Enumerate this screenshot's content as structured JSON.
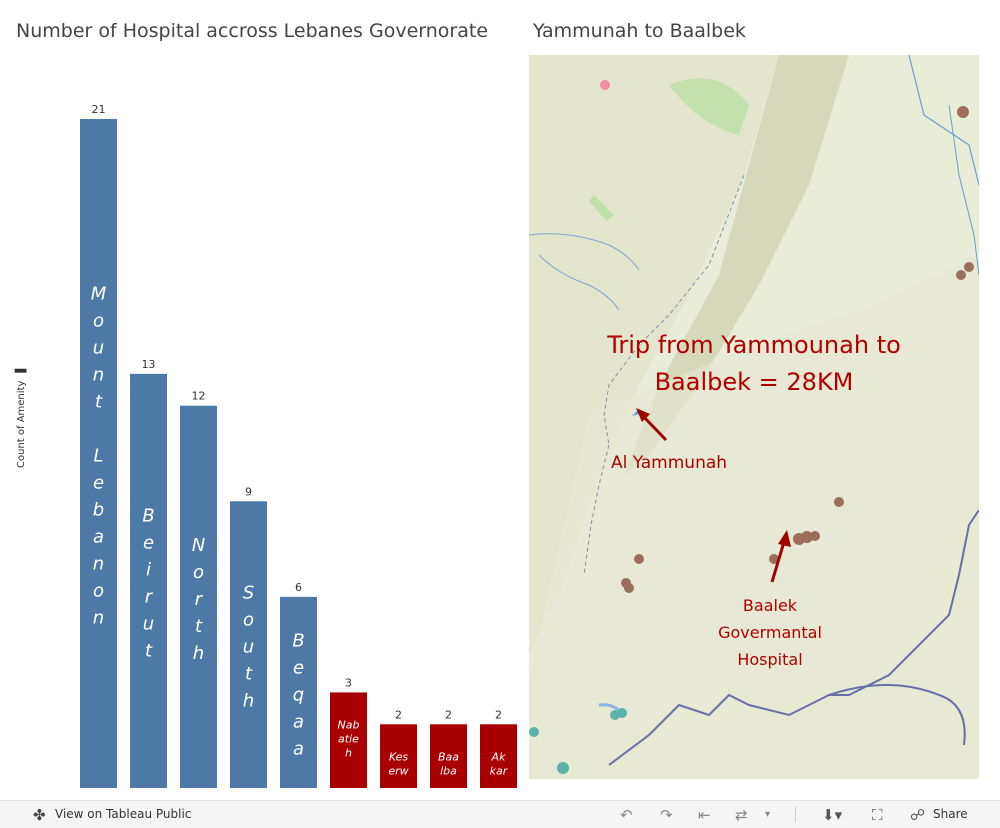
{
  "chart_title": "Number of Hospital accross Lebanes Governorate",
  "map_title": "Yammunah to Baalbek",
  "chart_data": {
    "type": "bar",
    "title": "Number of Hospital accross Lebanes Governorate",
    "ylabel": "Count of Amenity",
    "xlabel": "",
    "categories": [
      "Mount Lebanon",
      "Beirut",
      "North",
      "South",
      "Beqaa",
      "Nabatieh",
      "Keserwan-Jbeil",
      "Baalbek-Hermel",
      "Akkar"
    ],
    "bar_text": [
      "Mount Lebanon",
      "Beirut",
      "North",
      "South",
      "Beqaa",
      "Nab atie h",
      "Kes erw an - Jbei",
      "Baa lba k - Her",
      "Ak kar"
    ],
    "values": [
      21,
      13,
      12,
      9,
      6,
      3,
      2,
      2,
      2
    ],
    "colors": [
      "#4e79a7",
      "#4e79a7",
      "#4e79a7",
      "#4e79a7",
      "#4e79a7",
      "#a80000",
      "#a80000",
      "#a80000",
      "#a80000"
    ],
    "ylim": [
      0,
      21
    ],
    "grid": false,
    "legend": "none"
  },
  "map": {
    "annotation_title": "Trip from Yammounah to Baalbek = 28KM",
    "label_yammunah": "Al Yammunah",
    "label_baalbek": "Baalek Govermantal Hospital",
    "arrow_color": "#a00000",
    "marker_color": "#9b6e5a"
  },
  "toolbar": {
    "view_on": "View on Tableau Public",
    "share": "Share"
  }
}
